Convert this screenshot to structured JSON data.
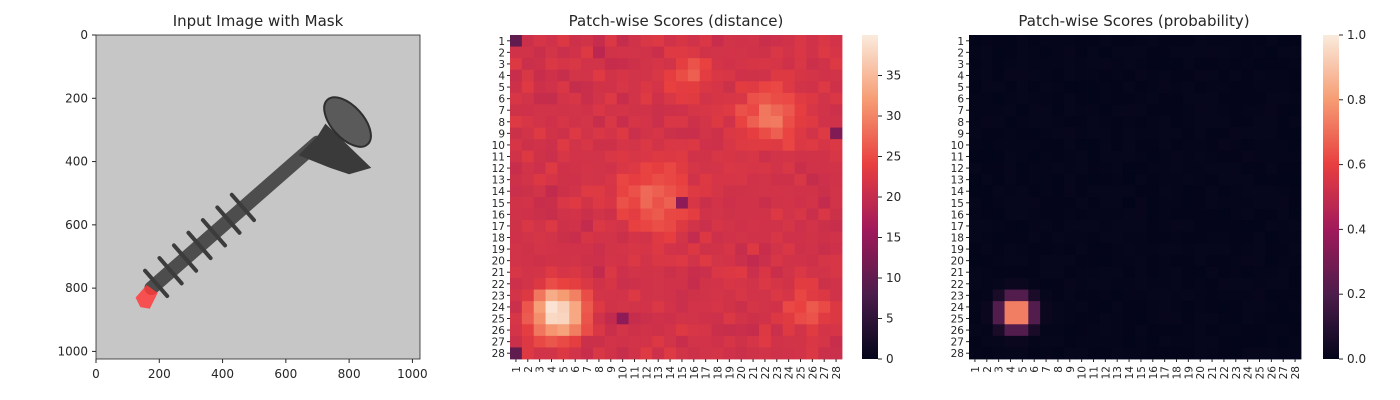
{
  "colors": {
    "rocket_stops": [
      "#03051a",
      "#4c1d4b",
      "#a11a5b",
      "#e83f3f",
      "#f69c73",
      "#faebdd"
    ],
    "photo_background": "#c6c6c6",
    "screw_body": "#4d4d4d",
    "screw_head": "#3a3a3a",
    "mask_overlay": "#ff3b3b"
  },
  "chart_data": [
    {
      "type": "image",
      "title": "Input Image with Mask",
      "xlabel": "",
      "ylabel": "",
      "xlim": [
        0,
        1024
      ],
      "ylim": [
        1024,
        0
      ],
      "xticks": [
        0,
        200,
        400,
        600,
        800,
        1000
      ],
      "yticks": [
        0,
        200,
        400,
        600,
        800,
        1000
      ],
      "image_description": "grayscale photo of a screw on a gray background with a red mask over the tip"
    },
    {
      "type": "heatmap",
      "title": "Patch-wise Scores (distance)",
      "xlabel": "",
      "ylabel": "",
      "grid_size": 28,
      "xticklabels": [
        "1",
        "2",
        "3",
        "4",
        "5",
        "6",
        "7",
        "8",
        "9",
        "10",
        "11",
        "12",
        "13",
        "14",
        "15",
        "16",
        "17",
        "18",
        "19",
        "20",
        "21",
        "22",
        "23",
        "24",
        "25",
        "26",
        "27",
        "28"
      ],
      "yticklabels": [
        "1",
        "2",
        "3",
        "4",
        "5",
        "6",
        "7",
        "8",
        "9",
        "10",
        "11",
        "12",
        "13",
        "14",
        "15",
        "16",
        "17",
        "18",
        "19",
        "20",
        "21",
        "22",
        "23",
        "24",
        "25",
        "26",
        "27",
        "28"
      ],
      "colorbar": {
        "min": 0,
        "max": 40,
        "ticks": [
          0,
          5,
          10,
          15,
          20,
          25,
          30,
          35
        ]
      },
      "colormap": "rocket",
      "base_value": 20,
      "hotspots": [
        {
          "row": 24.5,
          "col": 4.5,
          "peak": 40,
          "spread": 1.6
        },
        {
          "row": 7.5,
          "col": 22.5,
          "peak": 28,
          "spread": 2.2
        },
        {
          "row": 14.5,
          "col": 12.5,
          "peak": 27,
          "spread": 2.5
        },
        {
          "row": 4,
          "col": 15.5,
          "peak": 27,
          "spread": 1.3
        },
        {
          "row": 24,
          "col": 25.5,
          "peak": 26,
          "spread": 1.5
        }
      ],
      "coldspots": [
        {
          "row": 1,
          "col": 1,
          "value": 10
        },
        {
          "row": 28,
          "col": 1,
          "value": 10
        },
        {
          "row": 15,
          "col": 15,
          "value": 14
        },
        {
          "row": 9,
          "col": 28,
          "value": 13
        },
        {
          "row": 25,
          "col": 10,
          "value": 14
        }
      ]
    },
    {
      "type": "heatmap",
      "title": "Patch-wise Scores (probability)",
      "xlabel": "",
      "ylabel": "",
      "grid_size": 28,
      "xticklabels": [
        "1",
        "2",
        "3",
        "4",
        "5",
        "6",
        "7",
        "8",
        "9",
        "10",
        "11",
        "12",
        "13",
        "14",
        "15",
        "16",
        "17",
        "18",
        "19",
        "20",
        "21",
        "22",
        "23",
        "24",
        "25",
        "26",
        "27",
        "28"
      ],
      "yticklabels": [
        "1",
        "2",
        "3",
        "4",
        "5",
        "6",
        "7",
        "8",
        "9",
        "10",
        "11",
        "12",
        "13",
        "14",
        "15",
        "16",
        "17",
        "18",
        "19",
        "20",
        "21",
        "22",
        "23",
        "24",
        "25",
        "26",
        "27",
        "28"
      ],
      "colorbar": {
        "min": 0,
        "max": 1,
        "ticks": [
          0.0,
          0.2,
          0.4,
          0.6,
          0.8,
          1.0
        ]
      },
      "colorbar_ticklabels": [
        "0.0",
        "0.2",
        "0.4",
        "0.6",
        "0.8",
        "1.0"
      ],
      "colormap": "rocket",
      "base_value": 0,
      "hotspots": [
        {
          "row": 24.5,
          "col": 4.5,
          "peak": 1.0,
          "spread": 0.9
        }
      ]
    }
  ]
}
